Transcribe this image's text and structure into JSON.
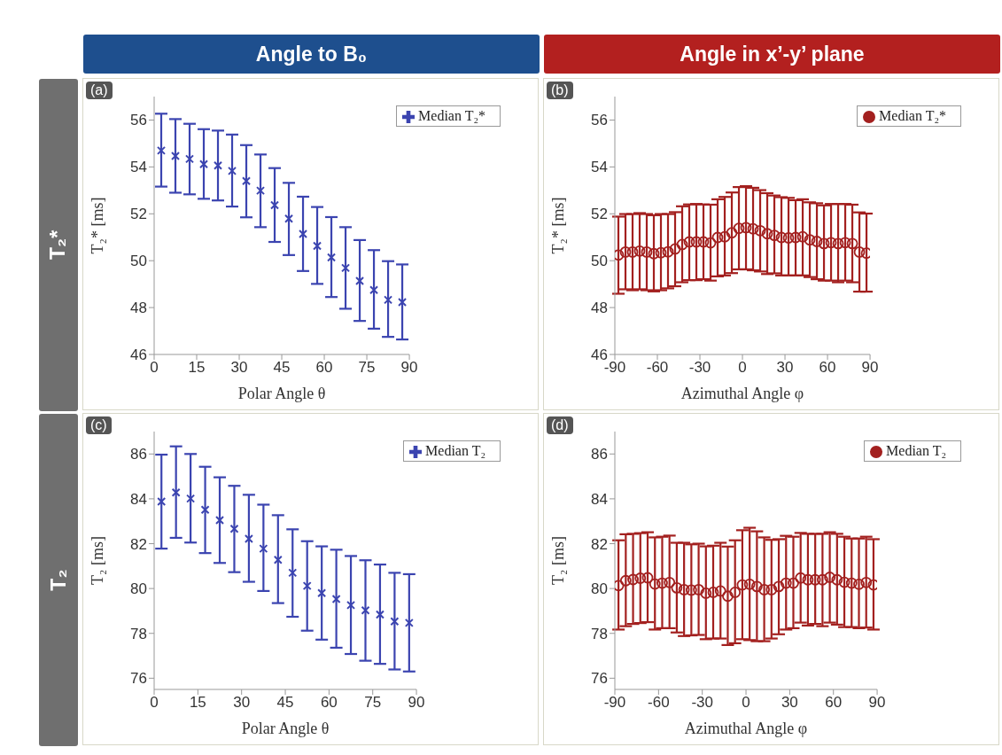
{
  "chart_data": [
    {
      "type": "scatter",
      "title": "Angle to B₀",
      "annotations": [
        "(a)",
        "T₂*"
      ],
      "xlabel": "Polar Angle θ",
      "ylabel": "T₂* [ms]",
      "x": [
        2.5,
        7.5,
        12.5,
        17.5,
        22.5,
        27.5,
        32.5,
        37.5,
        42.5,
        47.5,
        52.5,
        57.5,
        62.5,
        67.5,
        72.5,
        77.5,
        82.5,
        87.5
      ],
      "xlim": [
        0,
        90
      ],
      "xticks": [
        0,
        15,
        30,
        45,
        60,
        75,
        90
      ],
      "ylim": [
        46,
        57
      ],
      "yticks": [
        46,
        48,
        50,
        52,
        54,
        56
      ],
      "marker": "cross",
      "legend": "top right",
      "series": [
        {
          "name": "Median T₂*",
          "color": "#3b44b0",
          "values": [
            54.7,
            54.47,
            54.34,
            54.12,
            54.06,
            53.83,
            53.4,
            52.99,
            52.37,
            51.79,
            51.14,
            50.63,
            50.14,
            49.69,
            49.14,
            48.75,
            48.33,
            48.23
          ],
          "errors": [
            [
              53.16,
              56.27
            ],
            [
              52.9,
              56.04
            ],
            [
              52.83,
              55.84
            ],
            [
              52.64,
              55.61
            ],
            [
              52.57,
              55.55
            ],
            [
              52.31,
              55.38
            ],
            [
              51.85,
              54.93
            ],
            [
              51.43,
              54.53
            ],
            [
              50.8,
              53.95
            ],
            [
              50.24,
              53.32
            ],
            [
              49.56,
              52.73
            ],
            [
              49.01,
              52.29
            ],
            [
              48.45,
              51.86
            ],
            [
              47.95,
              51.43
            ],
            [
              47.43,
              50.88
            ],
            [
              47.1,
              50.45
            ],
            [
              46.75,
              49.98
            ],
            [
              46.64,
              49.84
            ]
          ]
        }
      ]
    },
    {
      "type": "scatter",
      "title": "Angle in x’-y’ plane",
      "annotations": [
        "(b)"
      ],
      "xlabel": "Azimuthal Angle φ",
      "ylabel": "T₂* [ms]",
      "x": [
        -87.5,
        -82.5,
        -77.5,
        -72.5,
        -67.5,
        -62.5,
        -57.5,
        -52.5,
        -47.5,
        -42.5,
        -37.5,
        -32.5,
        -27.5,
        -22.5,
        -17.5,
        -12.5,
        -7.5,
        -2.5,
        2.5,
        7.5,
        12.5,
        17.5,
        22.5,
        27.5,
        32.5,
        37.5,
        42.5,
        47.5,
        52.5,
        57.5,
        62.5,
        67.5,
        72.5,
        77.5,
        82.5,
        87.5
      ],
      "xlim": [
        -90,
        90
      ],
      "xticks": [
        -90,
        -60,
        -30,
        0,
        30,
        60,
        90
      ],
      "ylim": [
        46,
        57
      ],
      "yticks": [
        46,
        48,
        50,
        52,
        54,
        56
      ],
      "marker": "circle",
      "legend": "top right",
      "series": [
        {
          "name": "Median T₂*",
          "color": "#a3201f",
          "values": [
            50.24,
            50.37,
            50.37,
            50.41,
            50.37,
            50.3,
            50.34,
            50.38,
            50.5,
            50.69,
            50.8,
            50.8,
            50.8,
            50.76,
            50.99,
            51.02,
            51.19,
            51.38,
            51.41,
            51.36,
            51.28,
            51.15,
            51.08,
            50.99,
            50.97,
            50.99,
            51.02,
            50.89,
            50.82,
            50.73,
            50.77,
            50.73,
            50.77,
            50.73,
            50.37,
            50.32
          ],
          "errors": [
            [
              48.59,
              51.88
            ],
            [
              48.78,
              51.99
            ],
            [
              48.74,
              51.99
            ],
            [
              48.78,
              52.03
            ],
            [
              48.74,
              51.99
            ],
            [
              48.69,
              51.94
            ],
            [
              48.74,
              51.99
            ],
            [
              48.82,
              51.99
            ],
            [
              48.91,
              52.07
            ],
            [
              49.08,
              52.32
            ],
            [
              49.17,
              52.4
            ],
            [
              49.17,
              52.42
            ],
            [
              49.21,
              52.4
            ],
            [
              49.15,
              52.39
            ],
            [
              49.33,
              52.62
            ],
            [
              49.37,
              52.72
            ],
            [
              49.47,
              52.91
            ],
            [
              49.63,
              53.14
            ],
            [
              49.63,
              53.18
            ],
            [
              49.59,
              53.11
            ],
            [
              49.54,
              53.01
            ],
            [
              49.43,
              52.88
            ],
            [
              49.46,
              52.78
            ],
            [
              49.37,
              52.71
            ],
            [
              49.37,
              52.68
            ],
            [
              49.37,
              52.58
            ],
            [
              49.37,
              52.62
            ],
            [
              49.3,
              52.49
            ],
            [
              49.21,
              52.45
            ],
            [
              49.15,
              52.36
            ],
            [
              49.15,
              52.42
            ],
            [
              49.08,
              52.42
            ],
            [
              49.15,
              52.42
            ],
            [
              49.08,
              52.39
            ],
            [
              48.68,
              52.06
            ],
            [
              48.68,
              52.01
            ]
          ]
        }
      ]
    },
    {
      "type": "scatter",
      "annotations": [
        "(c)",
        "T₂"
      ],
      "xlabel": "Polar Angle θ",
      "ylabel": "T₂ [ms]",
      "x": [
        2.5,
        7.5,
        12.5,
        17.5,
        22.5,
        27.5,
        32.5,
        37.5,
        42.5,
        47.5,
        52.5,
        57.5,
        62.5,
        67.5,
        72.5,
        77.5,
        82.5,
        87.5
      ],
      "xlim": [
        0,
        90
      ],
      "xticks": [
        0,
        15,
        30,
        45,
        60,
        75,
        90
      ],
      "ylim": [
        75.5,
        87
      ],
      "yticks": [
        76,
        78,
        80,
        82,
        84,
        86
      ],
      "marker": "cross",
      "legend": "top right",
      "series": [
        {
          "name": "Median T₂",
          "color": "#3b44b0",
          "values": [
            83.88,
            84.28,
            84.01,
            83.51,
            83.05,
            82.66,
            82.22,
            81.78,
            81.28,
            80.7,
            80.12,
            79.8,
            79.53,
            79.26,
            79.03,
            78.84,
            78.53,
            78.47
          ],
          "errors": [
            [
              81.78,
              85.97
            ],
            [
              82.26,
              86.34
            ],
            [
              82.05,
              86.0
            ],
            [
              81.58,
              85.43
            ],
            [
              81.14,
              84.96
            ],
            [
              80.73,
              84.58
            ],
            [
              80.3,
              84.18
            ],
            [
              79.89,
              83.74
            ],
            [
              79.35,
              83.27
            ],
            [
              78.74,
              82.64
            ],
            [
              78.12,
              82.11
            ],
            [
              77.72,
              81.88
            ],
            [
              77.36,
              81.73
            ],
            [
              77.08,
              81.45
            ],
            [
              76.78,
              81.26
            ],
            [
              76.64,
              81.07
            ],
            [
              76.39,
              80.7
            ],
            [
              76.3,
              80.64
            ]
          ]
        }
      ]
    },
    {
      "type": "scatter",
      "annotations": [
        "(d)"
      ],
      "xlabel": "Azimuthal Angle φ",
      "ylabel": "T₂ [ms]",
      "x": [
        -87.5,
        -82.5,
        -77.5,
        -72.5,
        -67.5,
        -62.5,
        -57.5,
        -52.5,
        -47.5,
        -42.5,
        -37.5,
        -32.5,
        -27.5,
        -22.5,
        -17.5,
        -12.5,
        -7.5,
        -2.5,
        2.5,
        7.5,
        12.5,
        17.5,
        22.5,
        27.5,
        32.5,
        37.5,
        42.5,
        47.5,
        52.5,
        57.5,
        62.5,
        67.5,
        72.5,
        77.5,
        82.5,
        87.5
      ],
      "xlim": [
        -90,
        90
      ],
      "xticks": [
        -90,
        -60,
        -30,
        0,
        30,
        60,
        90
      ],
      "ylim": [
        75.5,
        87
      ],
      "yticks": [
        76,
        78,
        80,
        82,
        84,
        86
      ],
      "marker": "circle",
      "legend": "top right",
      "series": [
        {
          "name": "Median T₂",
          "color": "#a3201f",
          "values": [
            80.13,
            80.35,
            80.4,
            80.46,
            80.48,
            80.2,
            80.24,
            80.27,
            80.03,
            79.95,
            79.93,
            79.95,
            79.79,
            79.83,
            79.89,
            79.66,
            79.83,
            80.16,
            80.19,
            80.09,
            79.95,
            79.95,
            80.09,
            80.24,
            80.24,
            80.47,
            80.39,
            80.39,
            80.39,
            80.5,
            80.39,
            80.28,
            80.24,
            80.19,
            80.27,
            80.16
          ],
          "errors": [
            [
              78.17,
              82.15
            ],
            [
              78.32,
              82.42
            ],
            [
              78.42,
              82.44
            ],
            [
              78.46,
              82.47
            ],
            [
              78.5,
              82.51
            ],
            [
              78.17,
              82.28
            ],
            [
              78.23,
              82.31
            ],
            [
              78.23,
              82.36
            ],
            [
              78.04,
              82.04
            ],
            [
              77.88,
              82.04
            ],
            [
              77.91,
              81.97
            ],
            [
              77.93,
              82.0
            ],
            [
              77.74,
              81.88
            ],
            [
              77.77,
              81.91
            ],
            [
              77.77,
              82.04
            ],
            [
              77.48,
              81.87
            ],
            [
              77.56,
              82.15
            ],
            [
              77.74,
              82.6
            ],
            [
              77.7,
              82.71
            ],
            [
              77.65,
              82.55
            ],
            [
              77.65,
              82.28
            ],
            [
              77.77,
              82.17
            ],
            [
              77.96,
              82.2
            ],
            [
              78.17,
              82.35
            ],
            [
              78.23,
              82.31
            ],
            [
              78.48,
              82.48
            ],
            [
              78.35,
              82.44
            ],
            [
              78.42,
              82.44
            ],
            [
              78.32,
              82.44
            ],
            [
              78.48,
              82.51
            ],
            [
              78.39,
              82.44
            ],
            [
              78.28,
              82.31
            ],
            [
              78.28,
              82.23
            ],
            [
              78.23,
              82.23
            ],
            [
              78.26,
              82.31
            ],
            [
              78.17,
              82.2
            ]
          ]
        }
      ]
    }
  ]
}
